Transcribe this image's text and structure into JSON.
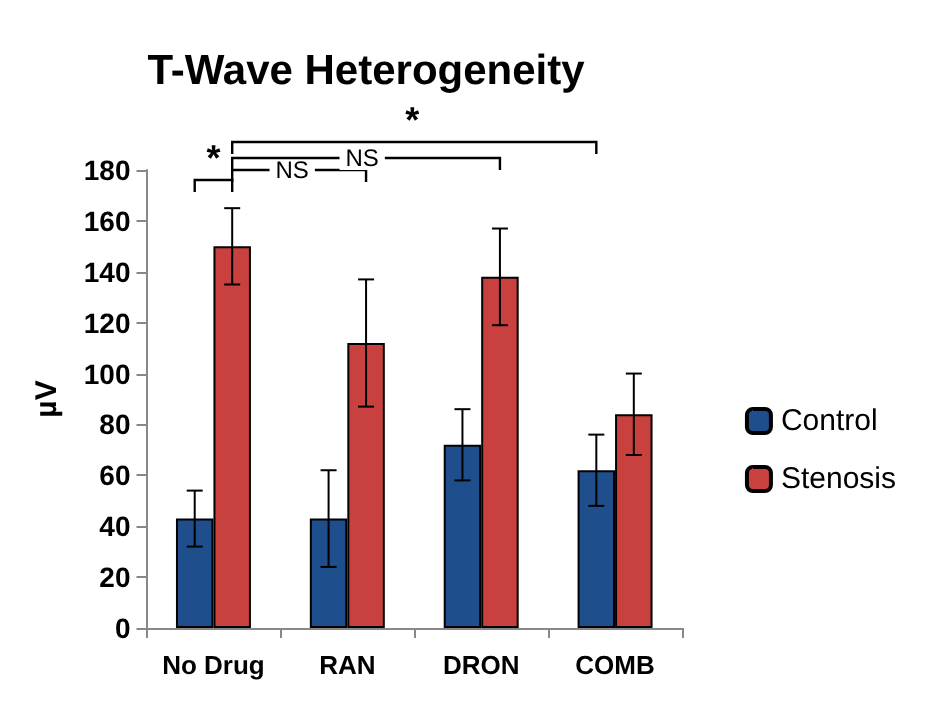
{
  "chart_data": {
    "type": "bar",
    "title": "T-Wave Heterogeneity",
    "ylabel": "µV",
    "categories": [
      "No Drug",
      "RAN",
      "DRON",
      "COMB"
    ],
    "series": [
      {
        "name": "Control",
        "color": "#1f4e8c",
        "values": [
          43,
          43,
          72,
          62
        ],
        "errors": [
          11,
          19,
          14,
          14
        ]
      },
      {
        "name": "Stenosis",
        "color": "#c9413e",
        "values": [
          150,
          112,
          138,
          84
        ],
        "errors": [
          15,
          25,
          19,
          16
        ]
      }
    ],
    "ylim": [
      0,
      180
    ],
    "yticks": [
      0,
      20,
      40,
      60,
      80,
      100,
      120,
      140,
      160,
      180
    ],
    "grid": false,
    "legend": "right",
    "annotations": [
      "*",
      "NS",
      "NS",
      "*"
    ]
  }
}
